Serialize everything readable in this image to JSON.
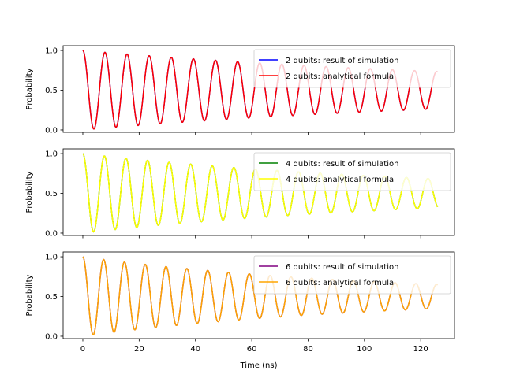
{
  "chart_data": [
    {
      "type": "line",
      "title": "",
      "xlabel": "",
      "ylabel": "Probability",
      "xlim": [
        -7,
        132
      ],
      "ylim": [
        -0.03,
        1.06
      ],
      "xticks": [
        0,
        20,
        40,
        60,
        80,
        100,
        120
      ],
      "yticks": [
        0.0,
        0.5,
        1.0
      ],
      "ytick_labels": [
        "0.0",
        "0.5",
        "1.0"
      ],
      "show_xtick_labels": false,
      "grid": false,
      "legend_position": "upper right",
      "model": {
        "omega": 0.8,
        "decay": 0.006
      },
      "x_range": [
        0,
        126
      ],
      "series": [
        {
          "name": "2 qubits: result of simulation",
          "color": "#0000ff",
          "role": "simulation"
        },
        {
          "name": "2 qubits: analytical formula",
          "color": "#ff0000",
          "role": "analytical"
        }
      ]
    },
    {
      "type": "line",
      "title": "",
      "xlabel": "",
      "ylabel": "Probability",
      "xlim": [
        -7,
        132
      ],
      "ylim": [
        -0.03,
        1.06
      ],
      "xticks": [
        0,
        20,
        40,
        60,
        80,
        100,
        120
      ],
      "yticks": [
        0.0,
        0.5,
        1.0
      ],
      "ytick_labels": [
        "0.0",
        "0.5",
        "1.0"
      ],
      "show_xtick_labels": false,
      "grid": false,
      "legend_position": "upper right",
      "model": {
        "omega": 0.82,
        "decay": 0.008
      },
      "x_range": [
        0,
        126
      ],
      "series": [
        {
          "name": "4 qubits: result of simulation",
          "color": "#008000",
          "role": "simulation"
        },
        {
          "name": "4 qubits: analytical formula",
          "color": "#ffff00",
          "role": "analytical"
        }
      ]
    },
    {
      "type": "line",
      "title": "",
      "xlabel": "Time (ns)",
      "ylabel": "Probability",
      "xlim": [
        -7,
        132
      ],
      "ylim": [
        -0.03,
        1.06
      ],
      "xticks": [
        0,
        20,
        40,
        60,
        80,
        100,
        120
      ],
      "xtick_labels": [
        "0",
        "20",
        "40",
        "60",
        "80",
        "100",
        "120"
      ],
      "yticks": [
        0.0,
        0.5,
        1.0
      ],
      "ytick_labels": [
        "0.0",
        "0.5",
        "1.0"
      ],
      "show_xtick_labels": true,
      "grid": false,
      "legend_position": "upper right",
      "model": {
        "omega": 0.85,
        "decay": 0.0095
      },
      "x_range": [
        0,
        126
      ],
      "series": [
        {
          "name": "6 qubits: result of simulation",
          "color": "#800080",
          "role": "simulation"
        },
        {
          "name": "6 qubits: analytical formula",
          "color": "#ffa500",
          "role": "analytical"
        }
      ]
    }
  ]
}
